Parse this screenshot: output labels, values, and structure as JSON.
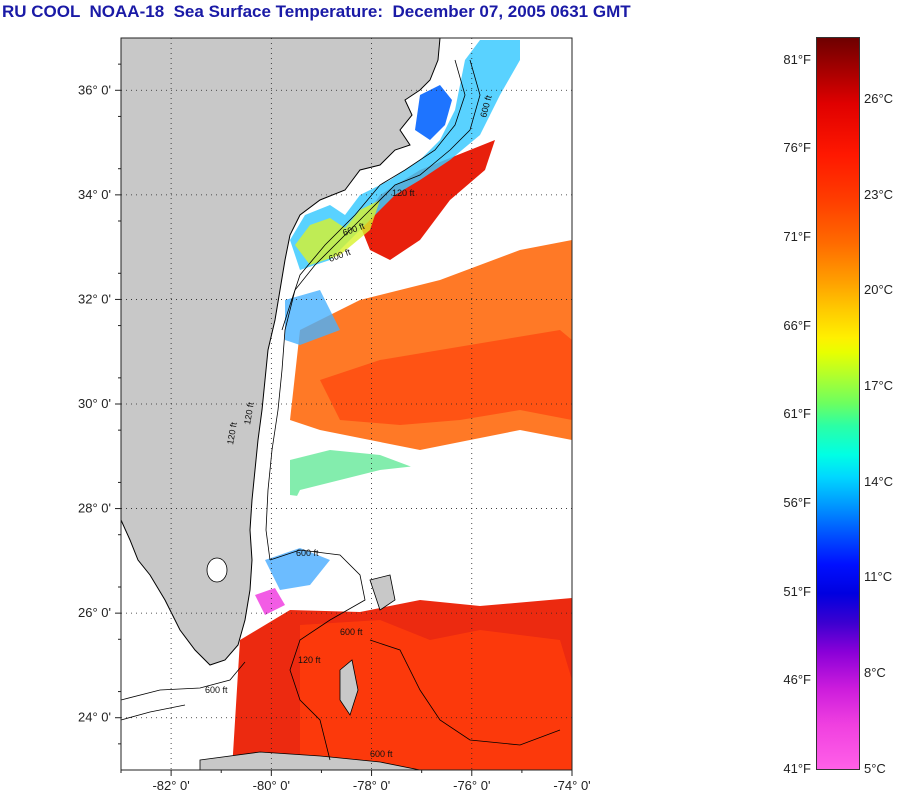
{
  "title": "RU COOL  NOAA-18  Sea Surface Temperature:  December 07, 2005 0631 GMT",
  "map": {
    "lat_labels": [
      "36° 0'",
      "34° 0'",
      "32° 0'",
      "30° 0'",
      "28° 0'",
      "26° 0'",
      "24° 0'"
    ],
    "lon_labels": [
      "-82° 0'",
      "-80° 0'",
      "-78° 0'",
      "-76° 0'",
      "-74° 0'"
    ],
    "lat_range": [
      23.0,
      37.0
    ],
    "lon_range": [
      -83.0,
      -74.0
    ],
    "contour_labels": [
      "600 ft",
      "120 ft",
      "600 ft",
      "600 ft",
      "120 ft",
      "120 ft",
      "600 ft",
      "600 ft",
      "120 ft",
      "600 ft",
      "600 ft"
    ],
    "colors": {
      "land": "#c8c8c8",
      "cloud": "#ffffff",
      "grid": "#222222"
    }
  },
  "legend": {
    "fahrenheit": [
      "81°F",
      "76°F",
      "71°F",
      "66°F",
      "61°F",
      "56°F",
      "51°F",
      "46°F",
      "41°F"
    ],
    "celsius": [
      "26°C",
      "23°C",
      "20°C",
      "17°C",
      "14°C",
      "11°C",
      "8°C",
      "5°C"
    ],
    "range_c": [
      5,
      28
    ]
  }
}
